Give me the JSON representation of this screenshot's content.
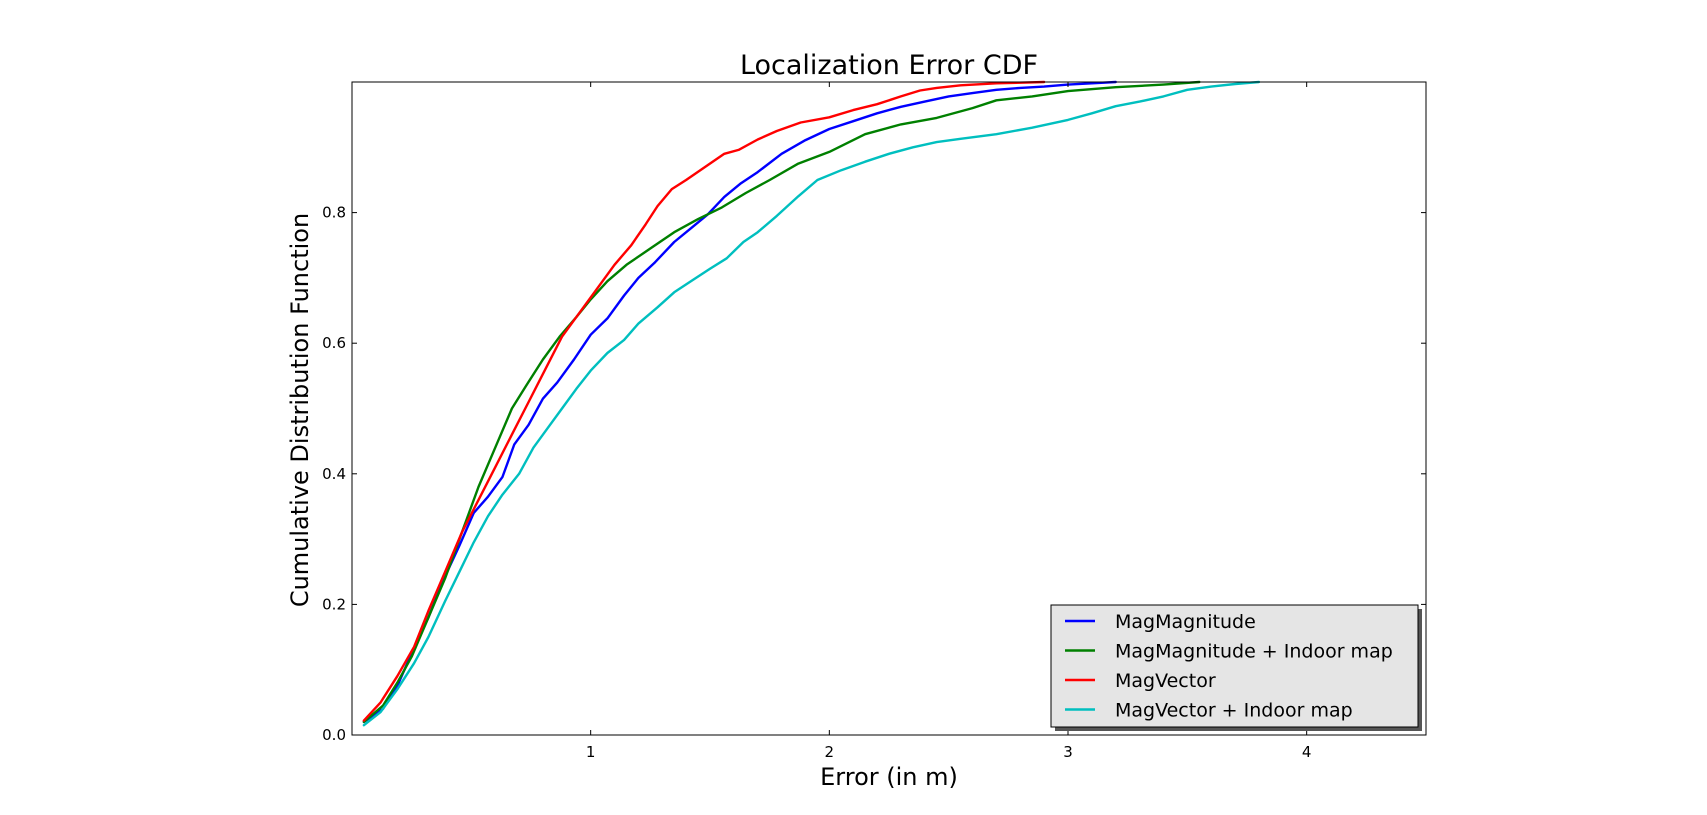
{
  "chart_data": {
    "type": "line",
    "title": "Localization Error CDF",
    "xlabel": "Error (in m)",
    "ylabel": "Cumulative Distribution Function",
    "xlim": [
      0,
      4.5
    ],
    "ylim": [
      0,
      1
    ],
    "xticks": [
      1,
      2,
      3,
      4
    ],
    "xtick_labels": [
      "1",
      "2",
      "3",
      "4"
    ],
    "yticks": [
      0,
      0.2,
      0.4,
      0.6,
      0.8
    ],
    "ytick_labels": [
      "0.0",
      "0.2",
      "0.4",
      "0.6",
      "0.8"
    ],
    "grid": false,
    "legend_position": "bottom-right",
    "series": [
      {
        "name": "MagMagnitude",
        "color": "#0000ff",
        "points": [
          [
            0.05,
            0.02
          ],
          [
            0.13,
            0.04
          ],
          [
            0.19,
            0.075
          ],
          [
            0.25,
            0.125
          ],
          [
            0.32,
            0.18
          ],
          [
            0.38,
            0.235
          ],
          [
            0.45,
            0.29
          ],
          [
            0.51,
            0.34
          ],
          [
            0.57,
            0.365
          ],
          [
            0.63,
            0.395
          ],
          [
            0.68,
            0.445
          ],
          [
            0.74,
            0.475
          ],
          [
            0.8,
            0.515
          ],
          [
            0.86,
            0.54
          ],
          [
            0.93,
            0.575
          ],
          [
            1.0,
            0.613
          ],
          [
            1.07,
            0.638
          ],
          [
            1.14,
            0.673
          ],
          [
            1.2,
            0.7
          ],
          [
            1.27,
            0.724
          ],
          [
            1.35,
            0.755
          ],
          [
            1.42,
            0.776
          ],
          [
            1.49,
            0.797
          ],
          [
            1.56,
            0.824
          ],
          [
            1.63,
            0.845
          ],
          [
            1.7,
            0.862
          ],
          [
            1.8,
            0.89
          ],
          [
            1.9,
            0.911
          ],
          [
            2.0,
            0.928
          ],
          [
            2.1,
            0.94
          ],
          [
            2.2,
            0.952
          ],
          [
            2.3,
            0.962
          ],
          [
            2.4,
            0.97
          ],
          [
            2.5,
            0.978
          ],
          [
            2.6,
            0.983
          ],
          [
            2.7,
            0.988
          ],
          [
            2.8,
            0.991
          ],
          [
            2.9,
            0.993
          ],
          [
            3.0,
            0.996
          ],
          [
            3.1,
            0.998
          ],
          [
            3.2,
            1.0
          ]
        ]
      },
      {
        "name": "MagMagnitude + Indoor map",
        "color": "#008000",
        "points": [
          [
            0.05,
            0.02
          ],
          [
            0.13,
            0.045
          ],
          [
            0.19,
            0.08
          ],
          [
            0.25,
            0.12
          ],
          [
            0.32,
            0.18
          ],
          [
            0.39,
            0.24
          ],
          [
            0.46,
            0.31
          ],
          [
            0.53,
            0.38
          ],
          [
            0.6,
            0.44
          ],
          [
            0.67,
            0.5
          ],
          [
            0.73,
            0.535
          ],
          [
            0.8,
            0.575
          ],
          [
            0.87,
            0.61
          ],
          [
            0.94,
            0.64
          ],
          [
            1.0,
            0.667
          ],
          [
            1.07,
            0.695
          ],
          [
            1.15,
            0.72
          ],
          [
            1.25,
            0.745
          ],
          [
            1.35,
            0.77
          ],
          [
            1.45,
            0.79
          ],
          [
            1.55,
            0.808
          ],
          [
            1.65,
            0.83
          ],
          [
            1.75,
            0.85
          ],
          [
            1.87,
            0.875
          ],
          [
            2.0,
            0.893
          ],
          [
            2.15,
            0.92
          ],
          [
            2.3,
            0.935
          ],
          [
            2.45,
            0.945
          ],
          [
            2.6,
            0.96
          ],
          [
            2.7,
            0.972
          ],
          [
            2.85,
            0.978
          ],
          [
            3.0,
            0.986
          ],
          [
            3.2,
            0.992
          ],
          [
            3.4,
            0.996
          ],
          [
            3.55,
            1.0
          ]
        ]
      },
      {
        "name": "MagVector",
        "color": "#ff0000",
        "points": [
          [
            0.05,
            0.022
          ],
          [
            0.12,
            0.05
          ],
          [
            0.19,
            0.09
          ],
          [
            0.26,
            0.135
          ],
          [
            0.32,
            0.19
          ],
          [
            0.39,
            0.25
          ],
          [
            0.46,
            0.31
          ],
          [
            0.53,
            0.36
          ],
          [
            0.6,
            0.41
          ],
          [
            0.67,
            0.46
          ],
          [
            0.74,
            0.51
          ],
          [
            0.81,
            0.56
          ],
          [
            0.88,
            0.61
          ],
          [
            0.95,
            0.645
          ],
          [
            1.03,
            0.685
          ],
          [
            1.1,
            0.72
          ],
          [
            1.17,
            0.75
          ],
          [
            1.23,
            0.782
          ],
          [
            1.28,
            0.81
          ],
          [
            1.34,
            0.836
          ],
          [
            1.4,
            0.85
          ],
          [
            1.48,
            0.87
          ],
          [
            1.56,
            0.89
          ],
          [
            1.62,
            0.896
          ],
          [
            1.7,
            0.912
          ],
          [
            1.78,
            0.925
          ],
          [
            1.88,
            0.938
          ],
          [
            2.0,
            0.946
          ],
          [
            2.1,
            0.957
          ],
          [
            2.2,
            0.966
          ],
          [
            2.3,
            0.978
          ],
          [
            2.38,
            0.987
          ],
          [
            2.45,
            0.991
          ],
          [
            2.55,
            0.995
          ],
          [
            2.7,
            0.998
          ],
          [
            2.9,
            1.0
          ]
        ]
      },
      {
        "name": "MagVector + Indoor map",
        "color": "#00bfbf",
        "points": [
          [
            0.05,
            0.015
          ],
          [
            0.12,
            0.035
          ],
          [
            0.19,
            0.07
          ],
          [
            0.26,
            0.11
          ],
          [
            0.32,
            0.15
          ],
          [
            0.39,
            0.205
          ],
          [
            0.45,
            0.25
          ],
          [
            0.51,
            0.295
          ],
          [
            0.57,
            0.335
          ],
          [
            0.63,
            0.368
          ],
          [
            0.7,
            0.4
          ],
          [
            0.76,
            0.44
          ],
          [
            0.82,
            0.47
          ],
          [
            0.88,
            0.5
          ],
          [
            0.94,
            0.53
          ],
          [
            1.0,
            0.558
          ],
          [
            1.07,
            0.585
          ],
          [
            1.14,
            0.605
          ],
          [
            1.2,
            0.63
          ],
          [
            1.28,
            0.655
          ],
          [
            1.35,
            0.678
          ],
          [
            1.42,
            0.695
          ],
          [
            1.5,
            0.714
          ],
          [
            1.57,
            0.73
          ],
          [
            1.64,
            0.755
          ],
          [
            1.7,
            0.77
          ],
          [
            1.78,
            0.795
          ],
          [
            1.87,
            0.825
          ],
          [
            1.95,
            0.85
          ],
          [
            2.05,
            0.865
          ],
          [
            2.15,
            0.878
          ],
          [
            2.25,
            0.89
          ],
          [
            2.35,
            0.9
          ],
          [
            2.45,
            0.908
          ],
          [
            2.55,
            0.913
          ],
          [
            2.7,
            0.92
          ],
          [
            2.85,
            0.93
          ],
          [
            3.0,
            0.942
          ],
          [
            3.1,
            0.952
          ],
          [
            3.2,
            0.963
          ],
          [
            3.3,
            0.97
          ],
          [
            3.4,
            0.978
          ],
          [
            3.5,
            0.988
          ],
          [
            3.6,
            0.993
          ],
          [
            3.7,
            0.997
          ],
          [
            3.8,
            1.0
          ]
        ]
      }
    ]
  }
}
